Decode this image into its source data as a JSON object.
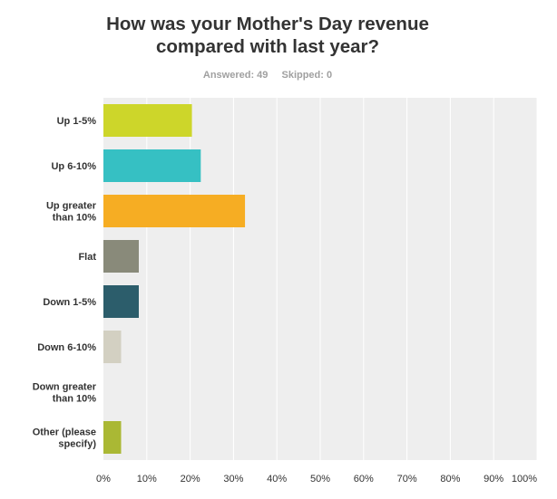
{
  "header": {
    "title_line1": "How was your Mother's Day revenue",
    "title_line2": "compared with last year?",
    "answered": "Answered: 49",
    "skipped": "Skipped: 0"
  },
  "chart_data": {
    "type": "bar",
    "orientation": "horizontal",
    "title": "How was your Mother's Day revenue compared with last year?",
    "categories": [
      [
        "Up 1-5%"
      ],
      [
        "Up 6-10%"
      ],
      [
        "Up greater",
        "than 10%"
      ],
      [
        "Flat"
      ],
      [
        "Down 1-5%"
      ],
      [
        "Down 6-10%"
      ],
      [
        "Down greater",
        "than 10%"
      ],
      [
        "Other (please",
        "specify)"
      ]
    ],
    "values": [
      20.41,
      22.45,
      32.65,
      8.16,
      8.16,
      4.08,
      0,
      4.08
    ],
    "colors": [
      "#cdd62a",
      "#36c0c3",
      "#f6ad23",
      "#898a7a",
      "#2c5d6b",
      "#d3d0c2",
      "#8f8a84",
      "#aab834"
    ],
    "xlim": [
      0,
      100
    ],
    "xticks": [
      "0%",
      "10%",
      "20%",
      "30%",
      "40%",
      "50%",
      "60%",
      "70%",
      "80%",
      "90%",
      "100%"
    ],
    "grid": true,
    "plot_background": "#eeeeee",
    "grid_color": "#ffffff"
  }
}
